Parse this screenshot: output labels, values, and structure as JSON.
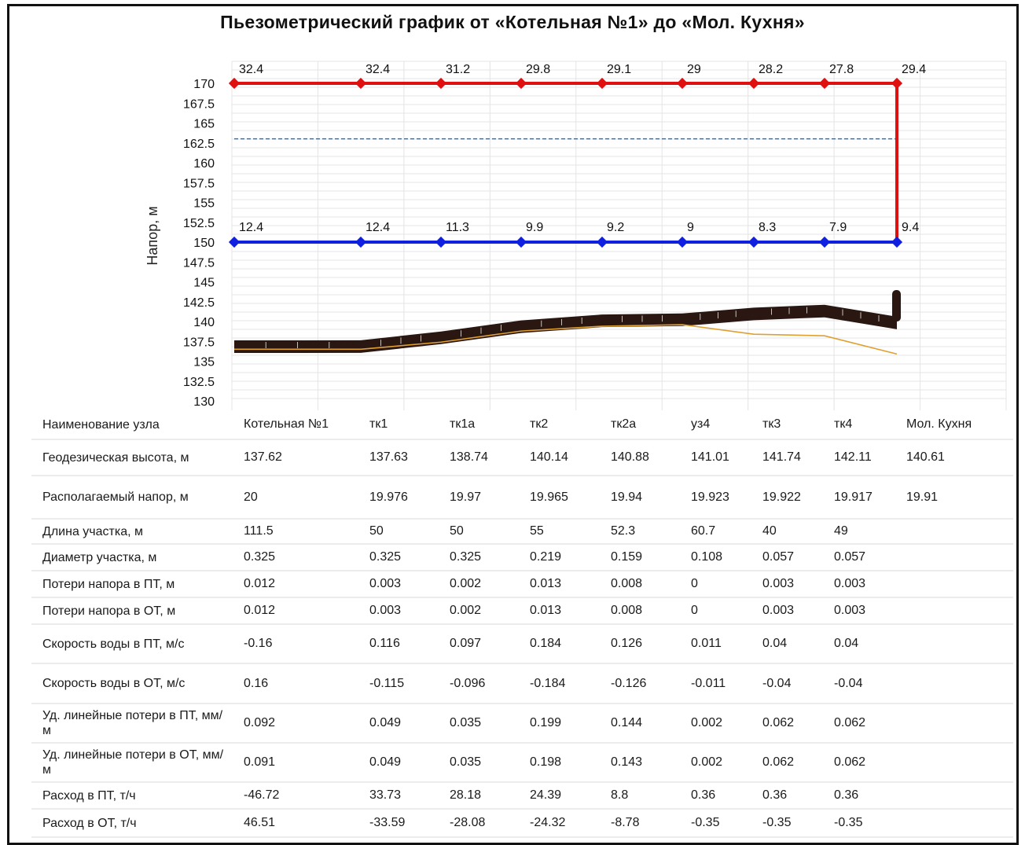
{
  "title": "Пьезометрический график от «Котельная №1» до «Мол. Кухня»",
  "colors": {
    "supply": "#e01010",
    "return": "#1020e0",
    "ground": "#2a1712",
    "ground_line": "#e0a030",
    "ref_dash": "#2c4a6e"
  },
  "chart_data": {
    "type": "line",
    "ylabel": "Напор, м",
    "ylim": [
      130,
      170
    ],
    "yticks": [
      "170",
      "167.5",
      "165",
      "162.5",
      "160",
      "157.5",
      "155",
      "152.5",
      "150",
      "147.5",
      "145",
      "142.5",
      "140",
      "137.5",
      "135",
      "132.5",
      "130"
    ],
    "grid": true,
    "categories": [
      "Котельная №1",
      "тк1",
      "тк1а",
      "тк2",
      "тк2а",
      "уз4",
      "тк3",
      "тк4",
      "Мол. Кухня"
    ],
    "series": [
      {
        "values": [
          170,
          170,
          170,
          170,
          170,
          170,
          170,
          170,
          170
        ],
        "labels": [
          "32.4",
          "32.4",
          "31.2",
          "29.8",
          "29.1",
          "29",
          "28.2",
          "27.8",
          "29.4"
        ]
      },
      {
        "values": [
          150,
          150,
          150,
          150,
          150,
          150,
          150,
          150,
          150
        ],
        "labels": [
          "12.4",
          "12.4",
          "11.3",
          "9.9",
          "9.2",
          "9",
          "8.3",
          "7.9",
          "9.4"
        ]
      },
      {
        "values": [
          137.62,
          137.63,
          138.74,
          140.14,
          140.88,
          141.01,
          141.74,
          142.11,
          140.61
        ]
      },
      {
        "values": [
          136.5,
          136.5,
          137.4,
          138.8,
          139.4,
          139.6,
          138.4,
          138.2,
          135.9
        ]
      }
    ],
    "reference_line": 163
  },
  "table": {
    "rows": [
      {
        "label": "Наименование узла",
        "cells": [
          "Котельная №1",
          "тк1",
          "тк1а",
          "тк2",
          "тк2а",
          "уз4",
          "тк3",
          "тк4",
          "Мол. Кухня"
        ]
      },
      {
        "label": "Геодезическая высота, м",
        "cells": [
          "137.62",
          "137.63",
          "138.74",
          "140.14",
          "140.88",
          "141.01",
          "141.74",
          "142.11",
          "140.61"
        ]
      },
      {
        "label": "Располагаемый напор, м",
        "cells": [
          "20",
          "19.976",
          "19.97",
          "19.965",
          "19.94",
          "19.923",
          "19.922",
          "19.917",
          "19.91"
        ]
      },
      {
        "label": "Длина участка, м",
        "cells": [
          "111.5",
          "50",
          "50",
          "55",
          "52.3",
          "60.7",
          "40",
          "49",
          ""
        ]
      },
      {
        "label": "Диаметр участка, м",
        "cells": [
          "0.325",
          "0.325",
          "0.325",
          "0.219",
          "0.159",
          "0.108",
          "0.057",
          "0.057",
          ""
        ]
      },
      {
        "label": "Потери напора в ПТ, м",
        "cells": [
          "0.012",
          "0.003",
          "0.002",
          "0.013",
          "0.008",
          "0",
          "0.003",
          "0.003",
          ""
        ]
      },
      {
        "label": "Потери напора в ОТ, м",
        "cells": [
          "0.012",
          "0.003",
          "0.002",
          "0.013",
          "0.008",
          "0",
          "0.003",
          "0.003",
          ""
        ]
      },
      {
        "label": "Скорость воды в ПТ, м/с",
        "cells": [
          "-0.16",
          "0.116",
          "0.097",
          "0.184",
          "0.126",
          "0.011",
          "0.04",
          "0.04",
          ""
        ]
      },
      {
        "label": "Скорость воды в ОТ, м/с",
        "cells": [
          "0.16",
          "-0.115",
          "-0.096",
          "-0.184",
          "-0.126",
          "-0.011",
          "-0.04",
          "-0.04",
          ""
        ]
      },
      {
        "label": "Уд. линейные потери в ПТ, мм/м",
        "cells": [
          "0.092",
          "0.049",
          "0.035",
          "0.199",
          "0.144",
          "0.002",
          "0.062",
          "0.062",
          ""
        ]
      },
      {
        "label": "Уд. линейные потери в ОТ, мм/м",
        "cells": [
          "0.091",
          "0.049",
          "0.035",
          "0.198",
          "0.143",
          "0.002",
          "0.062",
          "0.062",
          ""
        ]
      },
      {
        "label": "Расход в ПТ, т/ч",
        "cells": [
          "-46.72",
          "33.73",
          "28.18",
          "24.39",
          "8.8",
          "0.36",
          "0.36",
          "0.36",
          ""
        ]
      },
      {
        "label": "Расход в ОТ, т/ч",
        "cells": [
          "46.51",
          "-33.59",
          "-28.08",
          "-24.32",
          "-8.78",
          "-0.35",
          "-0.35",
          "-0.35",
          ""
        ]
      }
    ]
  }
}
